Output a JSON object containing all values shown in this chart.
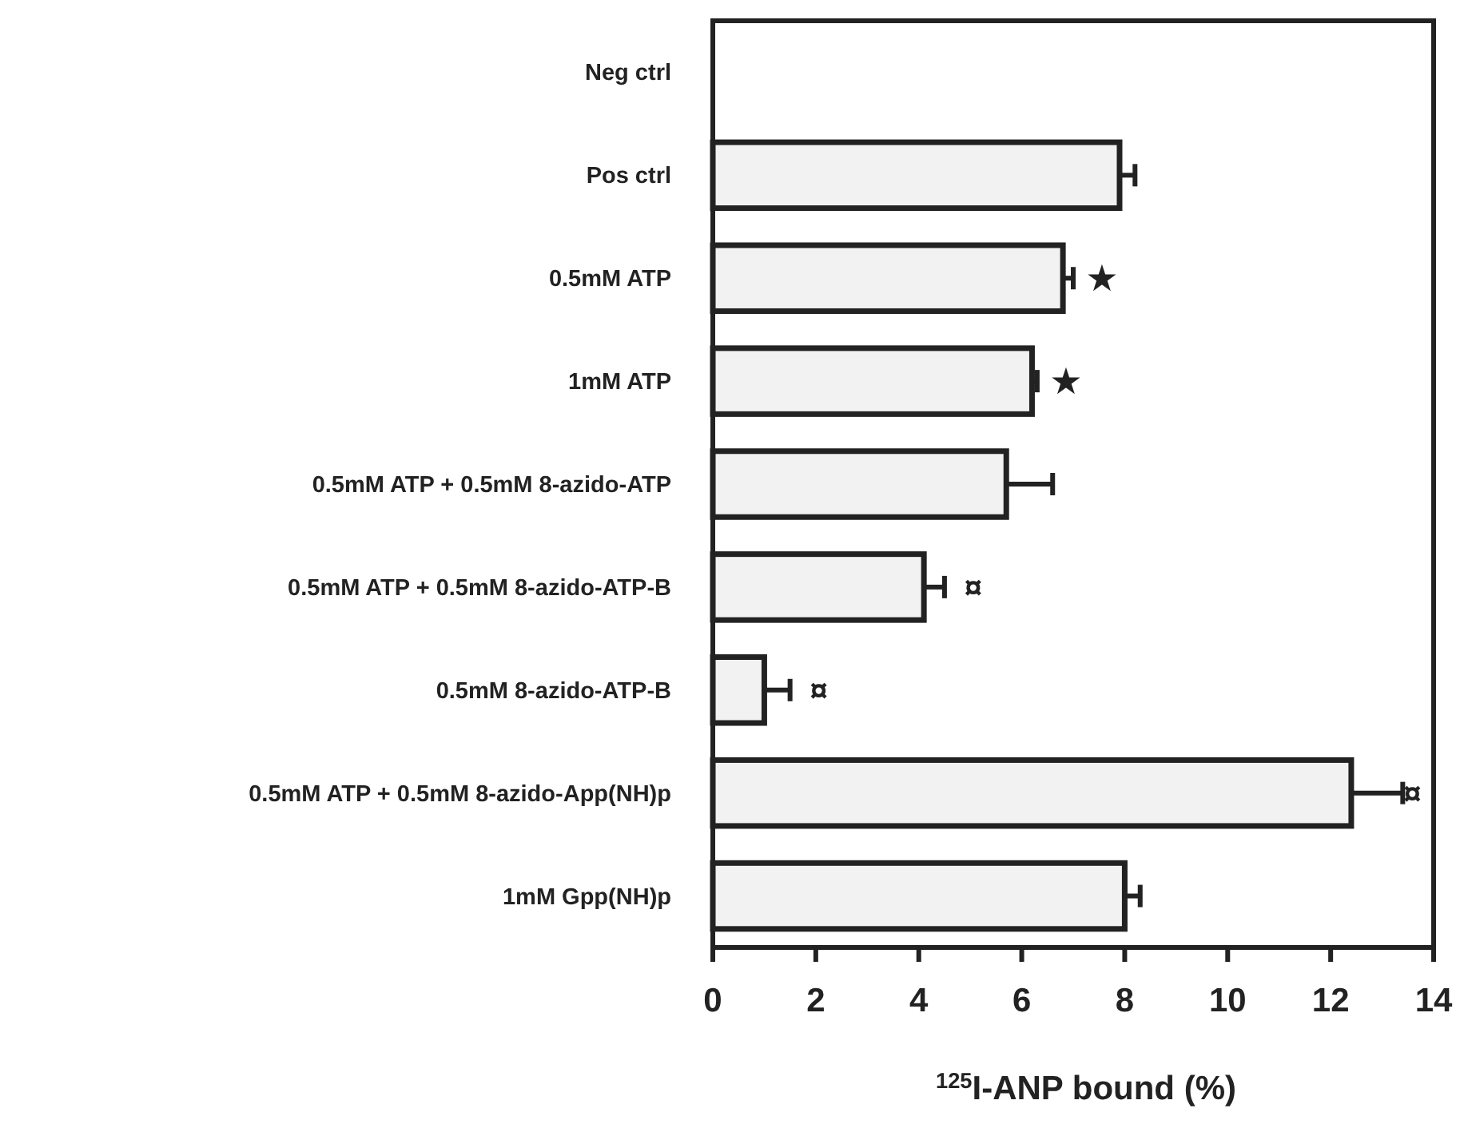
{
  "chart_data": {
    "type": "bar",
    "orientation": "horizontal",
    "categories": [
      "Neg ctrl",
      "Pos ctrl",
      "0.5mM ATP",
      "1mM ATP",
      "0.5mM ATP + 0.5mM 8-azido-ATP",
      "0.5mM ATP + 0.5mM 8-azido-ATP-B",
      "0.5mM 8-azido-ATP-B",
      "0.5mM ATP + 0.5mM 8-azido-App(NH)p",
      "1mM Gpp(NH)p"
    ],
    "values": [
      0,
      7.9,
      6.8,
      6.2,
      5.7,
      4.1,
      1.0,
      12.4,
      8.0
    ],
    "errors": [
      null,
      0.3,
      0.2,
      0.1,
      0.9,
      0.4,
      0.5,
      1.0,
      0.3
    ],
    "color": "#f2f2f2",
    "xlim": [
      0,
      14
    ],
    "xticks": [
      0,
      2,
      4,
      6,
      8,
      10,
      12,
      14
    ],
    "xlabel": "$^{125}$I-ANP bound (%)",
    "annotations": [
      {
        "text": "★",
        "x": 6.8,
        "y": "0.5mM ATP"
      },
      {
        "text": "★",
        "x": 6.2,
        "y": "1mM ATP"
      },
      {
        "text": "¤",
        "x": 4.1,
        "y": "0.5mM ATP + 0.5mM 8-azido-ATP-B"
      },
      {
        "text": "¤",
        "x": 1.0,
        "y": "0.5mM 8-azido-ATP-B"
      },
      {
        "text": "¤",
        "x": 12.4,
        "y": "0.5mM ATP + 0.5mM 8-azido-App(NH)p"
      }
    ],
    "grid": false
  }
}
